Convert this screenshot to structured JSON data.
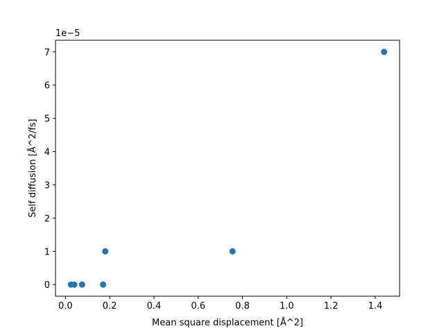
{
  "chart_data": {
    "type": "scatter",
    "title": "",
    "xlabel": "Mean square displacement [Å^2]",
    "ylabel": "Self diffusion [Å^2/fs]",
    "y_offset_label": "1e−5",
    "xlim": [
      -0.045,
      1.51
    ],
    "ylim": [
      -3.5e-06,
      7.35e-05
    ],
    "x_ticks": [
      0.0,
      0.2,
      0.4,
      0.6,
      0.8,
      1.0,
      1.2,
      1.4
    ],
    "x_tick_labels": [
      "0.0",
      "0.2",
      "0.4",
      "0.6",
      "0.8",
      "1.0",
      "1.2",
      "1.4"
    ],
    "y_ticks": [
      0,
      1e-05,
      2e-05,
      3e-05,
      4e-05,
      5e-05,
      6e-05,
      7e-05
    ],
    "y_tick_labels": [
      "0",
      "1",
      "2",
      "3",
      "4",
      "5",
      "6",
      "7"
    ],
    "grid": false,
    "marker_color": "#1f77b4",
    "x": [
      0.025,
      0.04,
      0.075,
      0.17,
      0.18,
      0.755,
      1.44
    ],
    "y": [
      0,
      0,
      0,
      0,
      1e-05,
      1e-05,
      7e-05
    ]
  }
}
